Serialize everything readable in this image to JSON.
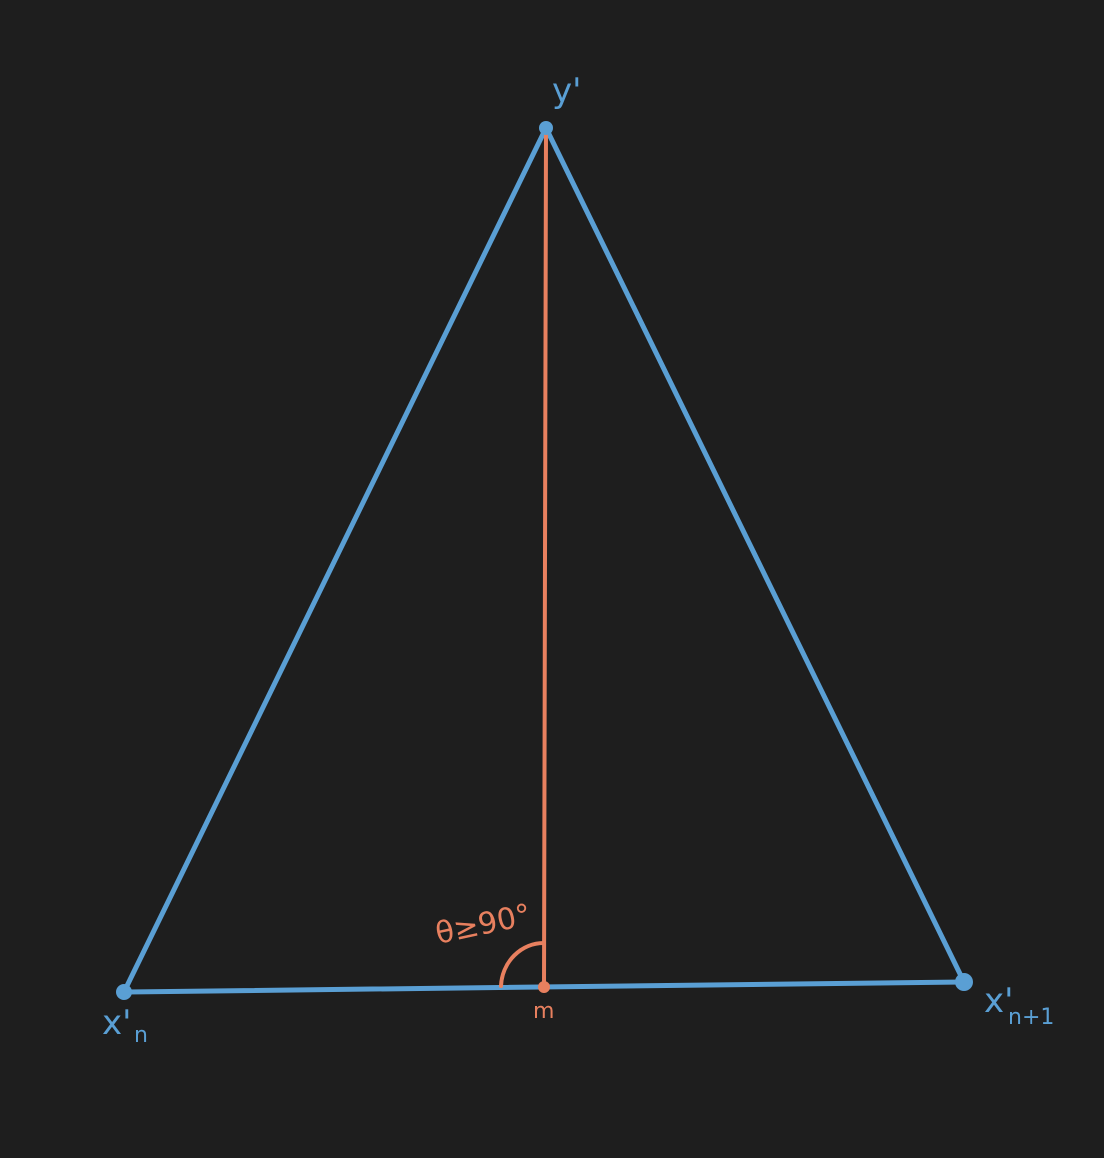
{
  "colors": {
    "background": "#1e1e1e",
    "triangle": "#5a9fd4",
    "median": "#e8805f"
  },
  "labels": {
    "top_vertex": "y'",
    "left_vertex_base": "x'",
    "left_vertex_sub": "n",
    "right_vertex_base": "x'",
    "right_vertex_sub": "n+1",
    "midpoint": "m",
    "angle": "θ≥90°"
  }
}
